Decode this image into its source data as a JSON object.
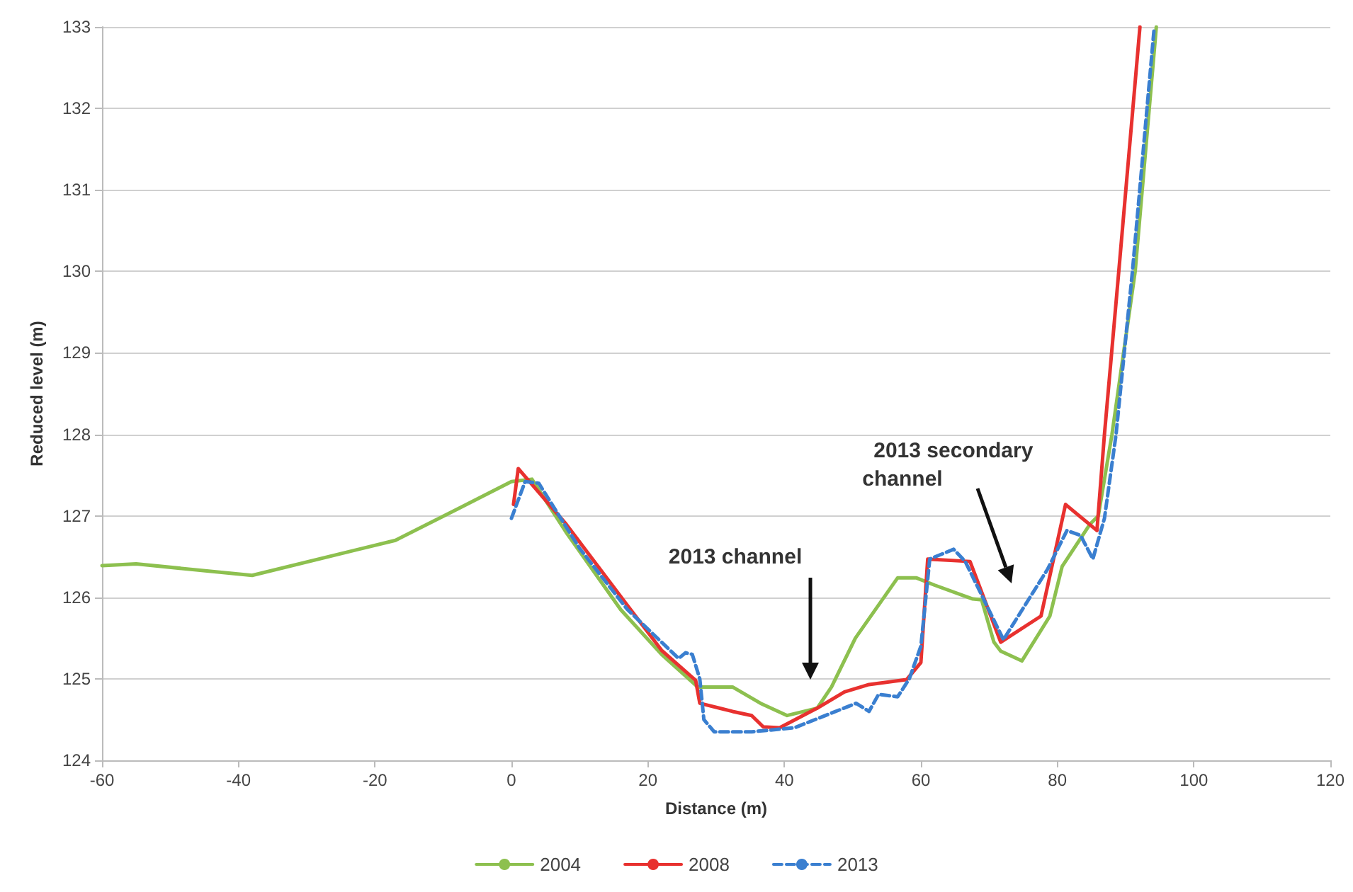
{
  "chart_data": {
    "type": "line",
    "xlabel": "Distance (m)",
    "ylabel": "Reduced level (m)",
    "xlim": [
      -60,
      120
    ],
    "xticks": [
      -60,
      -40,
      -20,
      0,
      20,
      40,
      60,
      80,
      100,
      120
    ],
    "ylim": [
      124,
      133
    ],
    "yticks": [
      124,
      125,
      126,
      127,
      128,
      129,
      130,
      131,
      132,
      133
    ],
    "grid": "y",
    "legend": "bottom",
    "marker": "none",
    "series": [
      {
        "name": "2004",
        "color": "#8dc04f",
        "line_style": "solid",
        "x": [
          -60,
          -55,
          -38,
          -17,
          -8,
          0,
          3,
          8,
          16,
          22,
          27.3,
          32.4,
          36.5,
          40.4,
          44.8,
          46.9,
          50.4,
          56.6,
          59.3,
          62,
          67.6,
          68.9,
          70.7,
          71.7,
          74.8,
          78.9,
          80.7,
          84.8,
          86,
          88,
          91.4,
          94.5
        ],
        "values": [
          126.39,
          126.41,
          126.27,
          126.7,
          127.08,
          127.42,
          127.45,
          126.8,
          125.85,
          125.3,
          124.9,
          124.9,
          124.7,
          124.55,
          124.64,
          124.9,
          125.5,
          126.24,
          126.24,
          126.15,
          125.98,
          125.97,
          125.45,
          125.34,
          125.22,
          125.77,
          126.38,
          126.9,
          127,
          128,
          130,
          133
        ]
      },
      {
        "name": "2008",
        "color": "#e8312f",
        "line_style": "solid",
        "x": [
          0.3,
          1,
          8,
          17,
          22,
          27,
          27.6,
          32.4,
          35.2,
          36.9,
          39.3,
          44.8,
          48.8,
          52.4,
          57.9,
          60,
          61,
          67.2,
          71.7,
          77.6,
          81.2,
          85.8,
          86.9,
          89,
          92.1
        ],
        "values": [
          127.14,
          127.58,
          126.9,
          125.9,
          125.35,
          124.98,
          124.7,
          124.6,
          124.55,
          124.41,
          124.4,
          124.64,
          124.84,
          124.93,
          124.99,
          125.2,
          126.47,
          126.44,
          125.45,
          125.77,
          127.14,
          126.82,
          128,
          130,
          133
        ]
      },
      {
        "name": "2013",
        "color": "#3a7fd0",
        "line_style": "dashed",
        "x": [
          0,
          2,
          4,
          10,
          17,
          22,
          24.5,
          25.5,
          26.5,
          27.6,
          28.2,
          29.7,
          35.2,
          41.5,
          48.7,
          50.5,
          52.4,
          53.8,
          56.6,
          58.3,
          60,
          61.3,
          64.8,
          66.5,
          72.1,
          78.6,
          81.4,
          83.4,
          85.2,
          86.9,
          88.6,
          91,
          94.2
        ],
        "values": [
          126.97,
          127.42,
          127.4,
          126.6,
          125.85,
          125.45,
          125.25,
          125.32,
          125.3,
          125,
          124.5,
          124.35,
          124.35,
          124.4,
          124.64,
          124.7,
          124.6,
          124.81,
          124.78,
          125,
          125.4,
          126.47,
          126.59,
          126.44,
          125.48,
          126.35,
          126.82,
          126.76,
          126.47,
          126.97,
          128,
          130,
          133
        ]
      }
    ],
    "annotations": [
      "2013 channel",
      "2013 secondary channel"
    ]
  }
}
